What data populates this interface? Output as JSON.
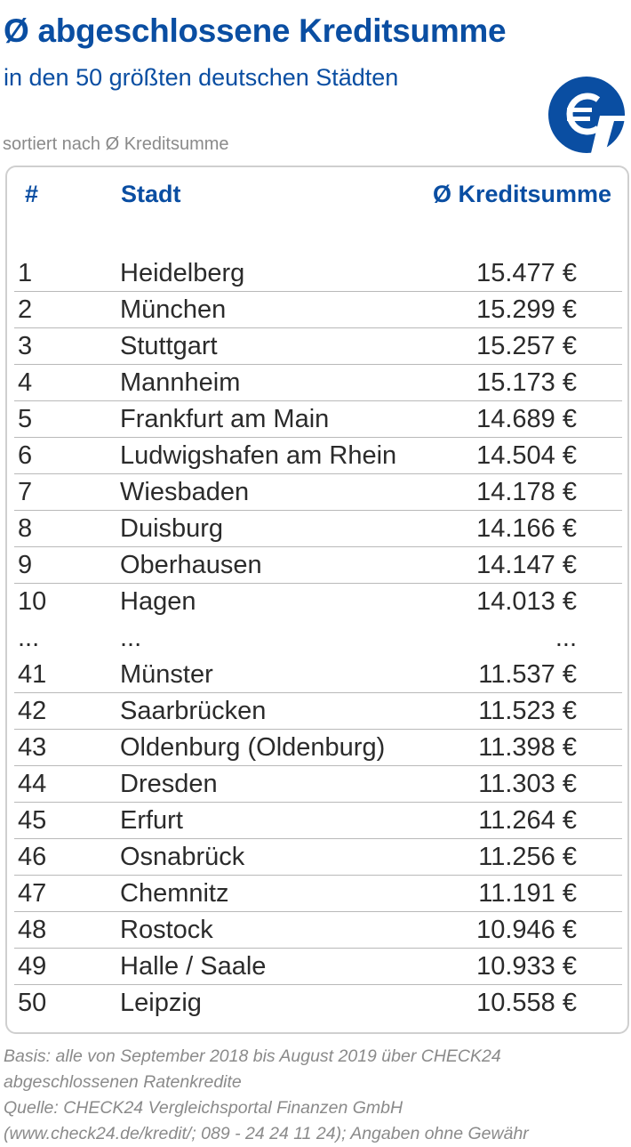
{
  "header": {
    "title": "Ø abgeschlossene Kreditsumme",
    "subtitle": "in den 50 größten deutschen Städten",
    "sort_note": "sortiert nach Ø  Kreditsumme",
    "logo_icon": "euro-icon",
    "accent_color": "#0a4ea2"
  },
  "table": {
    "columns": [
      "#",
      "Stadt",
      "Ø Kreditsumme"
    ],
    "rows": [
      {
        "rank": "1",
        "city": "Heidelberg",
        "amount": "15.477 €"
      },
      {
        "rank": "2",
        "city": "München",
        "amount": "15.299 €"
      },
      {
        "rank": "3",
        "city": "Stuttgart",
        "amount": "15.257 €"
      },
      {
        "rank": "4",
        "city": "Mannheim",
        "amount": "15.173 €"
      },
      {
        "rank": "5",
        "city": "Frankfurt am Main",
        "amount": "14.689 €"
      },
      {
        "rank": "6",
        "city": "Ludwigshafen am Rhein",
        "amount": "14.504 €"
      },
      {
        "rank": "7",
        "city": "Wiesbaden",
        "amount": "14.178 €"
      },
      {
        "rank": "8",
        "city": "Duisburg",
        "amount": "14.166 €"
      },
      {
        "rank": "9",
        "city": "Oberhausen",
        "amount": "14.147 €"
      },
      {
        "rank": "10",
        "city": "Hagen",
        "amount": "14.013 €"
      },
      {
        "rank": "...",
        "city": "...",
        "amount": "..."
      },
      {
        "rank": "41",
        "city": "Münster",
        "amount": "11.537 €"
      },
      {
        "rank": "42",
        "city": "Saarbrücken",
        "amount": "11.523 €"
      },
      {
        "rank": "43",
        "city": "Oldenburg (Oldenburg)",
        "amount": "11.398 €"
      },
      {
        "rank": "44",
        "city": "Dresden",
        "amount": "11.303 €"
      },
      {
        "rank": "45",
        "city": "Erfurt",
        "amount": "11.264 €"
      },
      {
        "rank": "46",
        "city": "Osnabrück",
        "amount": "11.256 €"
      },
      {
        "rank": "47",
        "city": "Chemnitz",
        "amount": "11.191 €"
      },
      {
        "rank": "48",
        "city": "Rostock",
        "amount": "10.946 €"
      },
      {
        "rank": "49",
        "city": "Halle / Saale",
        "amount": "10.933 €"
      },
      {
        "rank": "50",
        "city": "Leipzig",
        "amount": "10.558 €"
      }
    ]
  },
  "footnote": {
    "lines": [
      "Basis: alle von September 2018 bis August 2019 über CHECK24",
      "abgeschlossenen Ratenkredite",
      "Quelle: CHECK24 Vergleichsportal Finanzen GmbH",
      "(www.check24.de/kredit/; 089 - 24 24 11 24); Angaben ohne Gewähr"
    ]
  }
}
